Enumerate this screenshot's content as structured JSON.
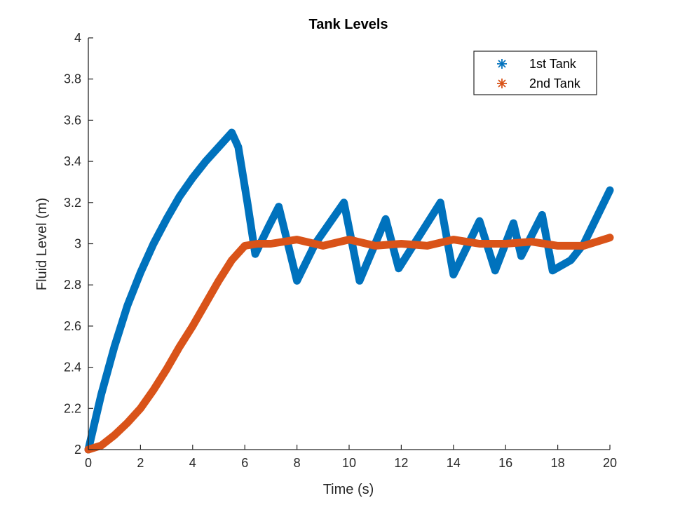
{
  "chart_data": {
    "type": "line",
    "title": "Tank Levels",
    "xlabel": "Time (s)",
    "ylabel": "Fluid Level (m)",
    "xlim": [
      0,
      20
    ],
    "ylim": [
      2,
      4
    ],
    "xticks": [
      0,
      2,
      4,
      6,
      8,
      10,
      12,
      14,
      16,
      18,
      20
    ],
    "yticks": [
      2,
      2.2,
      2.4,
      2.6,
      2.8,
      3,
      3.2,
      3.4,
      3.6,
      3.8,
      4
    ],
    "grid": false,
    "legend_position": "top-right",
    "series": [
      {
        "name": "1st Tank",
        "color": "#0072BD",
        "marker": "asterisk",
        "x": [
          0,
          0.5,
          1,
          1.5,
          2,
          2.5,
          3,
          3.5,
          4,
          4.5,
          5,
          5.5,
          5.75,
          6.1,
          6.4,
          6.9,
          7.3,
          8.0,
          8.7,
          9.8,
          10.4,
          11.4,
          11.9,
          13.5,
          14.0,
          15.0,
          15.6,
          16.3,
          16.6,
          17.4,
          17.8,
          18.5,
          19.0,
          20.0
        ],
        "y": [
          2.0,
          2.27,
          2.5,
          2.7,
          2.86,
          3.0,
          3.12,
          3.23,
          3.32,
          3.4,
          3.47,
          3.54,
          3.47,
          3.2,
          2.95,
          3.08,
          3.18,
          2.82,
          3.0,
          3.2,
          2.82,
          3.12,
          2.88,
          3.2,
          2.85,
          3.11,
          2.87,
          3.1,
          2.94,
          3.14,
          2.87,
          2.92,
          3.0,
          3.26
        ]
      },
      {
        "name": "2nd Tank",
        "color": "#D95319",
        "marker": "asterisk",
        "x": [
          0,
          0.5,
          1,
          1.5,
          2,
          2.5,
          3,
          3.5,
          4,
          4.5,
          5,
          5.5,
          6,
          6.5,
          7,
          8,
          9,
          10,
          11,
          12,
          13,
          14,
          15,
          16,
          17,
          18,
          19,
          20
        ],
        "y": [
          2.0,
          2.02,
          2.07,
          2.13,
          2.2,
          2.29,
          2.39,
          2.5,
          2.6,
          2.71,
          2.82,
          2.92,
          2.99,
          3.0,
          3.0,
          3.02,
          2.99,
          3.02,
          2.99,
          3.0,
          2.99,
          3.02,
          3.0,
          3.0,
          3.01,
          2.99,
          2.99,
          3.03
        ]
      }
    ]
  }
}
